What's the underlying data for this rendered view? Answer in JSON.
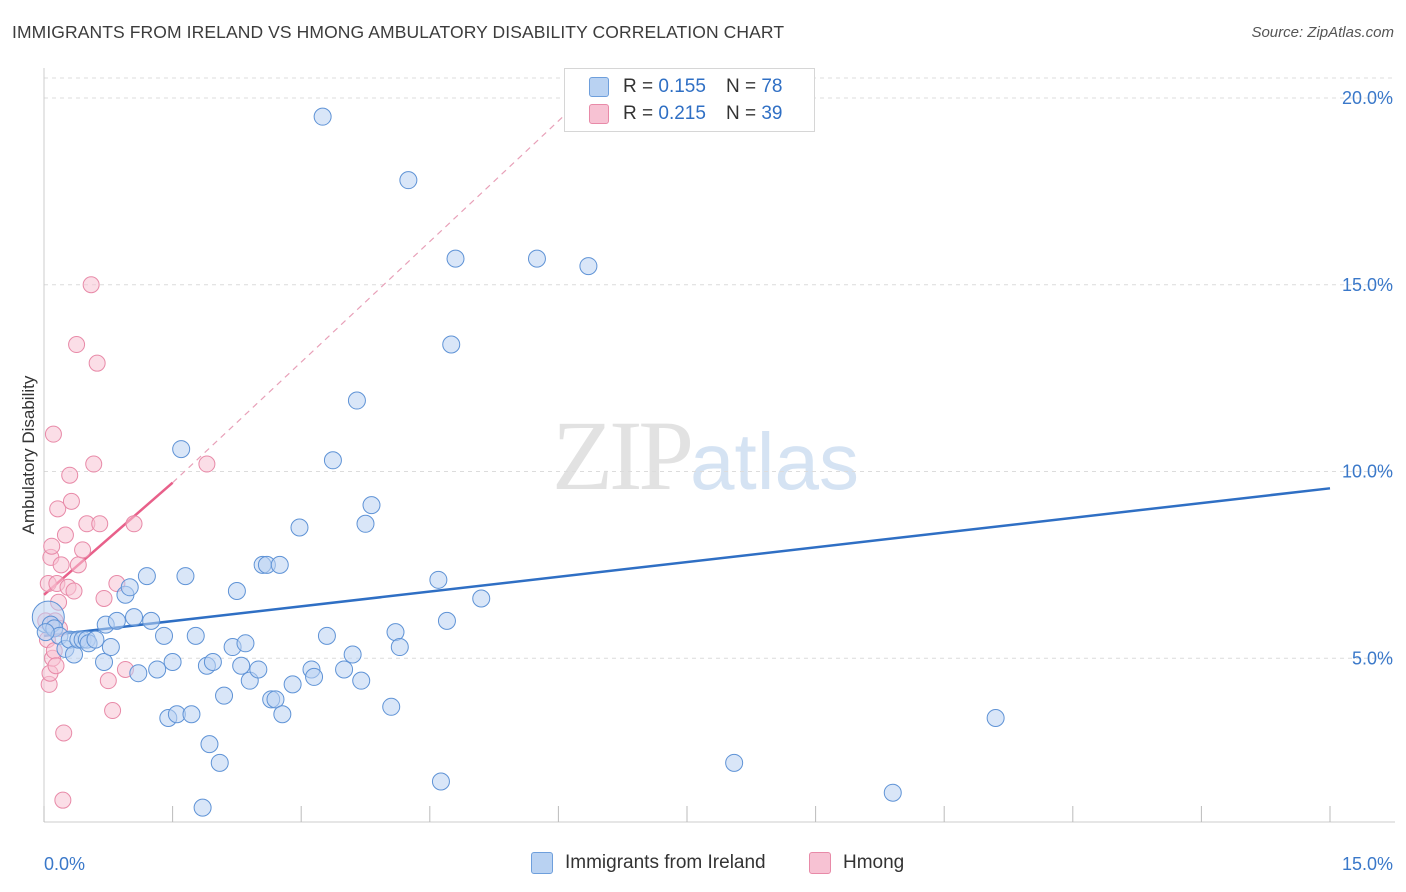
{
  "title": "IMMIGRANTS FROM IRELAND VS HMONG AMBULATORY DISABILITY CORRELATION CHART",
  "source": "Source: ZipAtlas.com",
  "watermark": {
    "zip": "ZIP",
    "atlas": "atlas"
  },
  "legend": {
    "rows": [
      {
        "r_label": "R = ",
        "r_value": "0.155",
        "n_label": "N = ",
        "n_value": "78"
      },
      {
        "r_label": "R = ",
        "r_value": "0.215",
        "n_label": "N = ",
        "n_value": "39"
      }
    ]
  },
  "bottom_legend": {
    "series1": "Immigrants from Ireland",
    "series2": "Hmong"
  },
  "colors": {
    "blue": "#2f6fc4",
    "blue_fill": "#b9d2f2",
    "pink": "#e8608a",
    "pink_fill": "#f7c2d3",
    "grid": "#dcdcdc"
  },
  "chart_data": {
    "type": "scatter",
    "xlabel": "",
    "ylabel": "Ambulatory Disability",
    "xlim": [
      0,
      15
    ],
    "ylim": [
      0,
      20.5
    ],
    "x_tick_labels": [
      "0.0%",
      "15.0%"
    ],
    "y_ticks": [
      5,
      10,
      15,
      20
    ],
    "y_tick_labels": [
      "5.0%",
      "10.0%",
      "15.0%",
      "20.0%"
    ],
    "grid": true,
    "legend_position": "top-center",
    "series": [
      {
        "name": "Immigrants from Ireland",
        "R": 0.155,
        "N": 78,
        "trend": {
          "x": [
            0,
            15
          ],
          "y": [
            5.6,
            9.55
          ]
        },
        "points": [
          [
            0.05,
            6.1
          ],
          [
            0.08,
            5.9
          ],
          [
            0.12,
            5.8
          ],
          [
            0.18,
            5.6
          ],
          [
            0.25,
            5.25
          ],
          [
            0.3,
            5.5
          ],
          [
            0.35,
            5.1
          ],
          [
            0.4,
            5.5
          ],
          [
            0.45,
            5.5
          ],
          [
            0.5,
            5.5
          ],
          [
            0.52,
            5.4
          ],
          [
            0.6,
            5.5
          ],
          [
            0.7,
            4.9
          ],
          [
            0.72,
            5.9
          ],
          [
            0.78,
            5.3
          ],
          [
            0.85,
            6.0
          ],
          [
            0.95,
            6.7
          ],
          [
            1.0,
            6.9
          ],
          [
            1.05,
            6.1
          ],
          [
            1.1,
            4.6
          ],
          [
            1.2,
            7.2
          ],
          [
            1.25,
            6.0
          ],
          [
            1.32,
            4.7
          ],
          [
            1.4,
            5.6
          ],
          [
            1.45,
            3.4
          ],
          [
            1.5,
            4.9
          ],
          [
            1.55,
            3.5
          ],
          [
            1.6,
            10.6
          ],
          [
            1.65,
            7.2
          ],
          [
            1.72,
            3.5
          ],
          [
            1.77,
            5.6
          ],
          [
            1.85,
            1.0
          ],
          [
            1.9,
            4.8
          ],
          [
            1.93,
            2.7
          ],
          [
            1.97,
            4.9
          ],
          [
            2.05,
            2.2
          ],
          [
            2.1,
            4.0
          ],
          [
            2.2,
            5.3
          ],
          [
            2.25,
            6.8
          ],
          [
            2.3,
            4.8
          ],
          [
            2.35,
            5.4
          ],
          [
            2.4,
            4.4
          ],
          [
            2.5,
            4.7
          ],
          [
            2.55,
            7.5
          ],
          [
            2.6,
            7.5
          ],
          [
            2.65,
            3.9
          ],
          [
            2.7,
            3.9
          ],
          [
            2.75,
            7.5
          ],
          [
            2.78,
            3.5
          ],
          [
            2.9,
            4.3
          ],
          [
            2.98,
            8.5
          ],
          [
            3.12,
            4.7
          ],
          [
            3.15,
            4.5
          ],
          [
            3.25,
            19.5
          ],
          [
            3.3,
            5.6
          ],
          [
            3.37,
            10.3
          ],
          [
            3.5,
            4.7
          ],
          [
            3.6,
            5.1
          ],
          [
            3.65,
            11.9
          ],
          [
            3.7,
            4.4
          ],
          [
            3.75,
            8.6
          ],
          [
            3.82,
            9.1
          ],
          [
            4.05,
            3.7
          ],
          [
            4.1,
            5.7
          ],
          [
            4.15,
            5.3
          ],
          [
            4.25,
            17.8
          ],
          [
            4.6,
            7.1
          ],
          [
            4.63,
            1.7
          ],
          [
            4.7,
            6.0
          ],
          [
            4.75,
            13.4
          ],
          [
            4.8,
            15.7
          ],
          [
            5.1,
            6.6
          ],
          [
            5.75,
            15.7
          ],
          [
            6.35,
            15.5
          ],
          [
            8.05,
            2.2
          ],
          [
            9.9,
            1.4
          ],
          [
            11.1,
            3.4
          ],
          [
            0.02,
            5.7
          ]
        ]
      },
      {
        "name": "Hmong",
        "R": 0.215,
        "N": 39,
        "trend": {
          "x": [
            0,
            1.5
          ],
          "y": [
            6.7,
            9.7
          ]
        },
        "trend_dashed": {
          "x": [
            1.5,
            6.1
          ],
          "y": [
            9.7,
            19.6
          ]
        },
        "points": [
          [
            0.02,
            6.0
          ],
          [
            0.04,
            5.5
          ],
          [
            0.05,
            7.0
          ],
          [
            0.06,
            4.3
          ],
          [
            0.07,
            4.6
          ],
          [
            0.08,
            7.7
          ],
          [
            0.09,
            8.0
          ],
          [
            0.1,
            5.0
          ],
          [
            0.11,
            11.0
          ],
          [
            0.12,
            5.2
          ],
          [
            0.13,
            6.0
          ],
          [
            0.14,
            4.8
          ],
          [
            0.15,
            7.0
          ],
          [
            0.16,
            9.0
          ],
          [
            0.17,
            6.5
          ],
          [
            0.18,
            5.8
          ],
          [
            0.2,
            7.5
          ],
          [
            0.22,
            1.2
          ],
          [
            0.23,
            3.0
          ],
          [
            0.25,
            8.3
          ],
          [
            0.28,
            6.9
          ],
          [
            0.3,
            9.9
          ],
          [
            0.32,
            9.2
          ],
          [
            0.35,
            6.8
          ],
          [
            0.38,
            13.4
          ],
          [
            0.4,
            7.5
          ],
          [
            0.45,
            7.9
          ],
          [
            0.5,
            8.6
          ],
          [
            0.55,
            15.0
          ],
          [
            0.58,
            10.2
          ],
          [
            0.62,
            12.9
          ],
          [
            0.65,
            8.6
          ],
          [
            0.7,
            6.6
          ],
          [
            0.75,
            4.4
          ],
          [
            0.8,
            3.6
          ],
          [
            0.85,
            7.0
          ],
          [
            0.95,
            4.7
          ],
          [
            1.05,
            8.6
          ],
          [
            1.9,
            10.2
          ]
        ]
      }
    ]
  }
}
